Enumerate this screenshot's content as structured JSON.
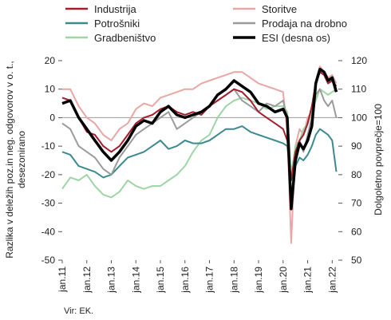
{
  "chart_data": {
    "type": "line",
    "source": "Vir: EK.",
    "left_axis": {
      "label": "Razlika v deležih poz.in neg. odgovorov v o. t., desezonirano",
      "min": -50,
      "max": 20,
      "ticks": [
        "20",
        "10",
        "0",
        "-10",
        "-20",
        "-30",
        "-40",
        "-50"
      ]
    },
    "right_axis": {
      "label": "Dolgoletno povprečje=100",
      "min": 50,
      "max": 120,
      "ticks": [
        "120",
        "110",
        "100",
        "90",
        "80",
        "70",
        "60",
        "50"
      ]
    },
    "x_axis": {
      "start": 2011.0,
      "end": 2022.25,
      "labels": [
        "jan.11",
        "jan.12",
        "jan.13",
        "jan.14",
        "jan.15",
        "jan.16",
        "jan.17",
        "jan.18",
        "jan.19",
        "jan.20",
        "jan.21",
        "jan.22"
      ],
      "label_years": [
        2011,
        2012,
        2013,
        2014,
        2015,
        2016,
        2017,
        2018,
        2019,
        2020,
        2021,
        2022
      ]
    },
    "legend": {
      "placement": "top",
      "entries": [
        "Industrija",
        "Storitve",
        "Potrošniki",
        "Prodaja na drobno",
        "Gradbeništvo",
        "ESI (desna os)"
      ]
    },
    "series": [
      {
        "name": "Storitve",
        "axis": "left",
        "color": "#e8a7a4",
        "width": 2,
        "x": [
          2011.0,
          2011.33,
          2011.67,
          2012.0,
          2012.33,
          2012.67,
          2013.0,
          2013.33,
          2013.67,
          2014.0,
          2014.33,
          2014.67,
          2015.0,
          2015.33,
          2015.67,
          2016.0,
          2016.33,
          2016.67,
          2017.0,
          2017.33,
          2017.67,
          2018.0,
          2018.33,
          2018.67,
          2019.0,
          2019.33,
          2019.67,
          2020.0,
          2020.17,
          2020.33,
          2020.5,
          2020.67,
          2020.83,
          2021.0,
          2021.17,
          2021.33,
          2021.5,
          2021.67,
          2021.83,
          2022.0,
          2022.17
        ],
        "y": [
          10,
          10,
          4,
          0,
          -2,
          -6,
          -8,
          -4,
          -2,
          3,
          5,
          4,
          7,
          8,
          9,
          10,
          10,
          12,
          13,
          14,
          15,
          16,
          16,
          14,
          12,
          11,
          10,
          9,
          -5,
          -44,
          -10,
          -4,
          -6,
          0,
          2,
          13,
          18,
          16,
          14,
          15,
          12
        ]
      },
      {
        "name": "Gradbeništvo",
        "axis": "left",
        "color": "#9fd5a6",
        "width": 2,
        "x": [
          2011.0,
          2011.33,
          2011.67,
          2012.0,
          2012.33,
          2012.67,
          2013.0,
          2013.33,
          2013.67,
          2014.0,
          2014.33,
          2014.67,
          2015.0,
          2015.33,
          2015.67,
          2016.0,
          2016.33,
          2016.67,
          2017.0,
          2017.33,
          2017.67,
          2018.0,
          2018.33,
          2018.67,
          2019.0,
          2019.33,
          2019.67,
          2020.0,
          2020.17,
          2020.33,
          2020.5,
          2020.67,
          2020.83,
          2021.0,
          2021.17,
          2021.33,
          2021.5,
          2021.67,
          2021.83,
          2022.0,
          2022.17
        ],
        "y": [
          -25,
          -21,
          -22,
          -20,
          -24,
          -27,
          -28,
          -26,
          -22,
          -24,
          -25,
          -24,
          -24,
          -22,
          -20,
          -17,
          -12,
          -8,
          -6,
          0,
          4,
          6,
          7,
          6,
          5,
          3,
          4,
          4,
          2,
          -20,
          -10,
          -8,
          -4,
          -2,
          2,
          6,
          10,
          9,
          8,
          9,
          10
        ]
      },
      {
        "name": "Potrošniki",
        "axis": "left",
        "color": "#3c8a8e",
        "width": 2,
        "x": [
          2011.0,
          2011.33,
          2011.67,
          2012.0,
          2012.33,
          2012.67,
          2013.0,
          2013.33,
          2013.67,
          2014.0,
          2014.33,
          2014.67,
          2015.0,
          2015.33,
          2015.67,
          2016.0,
          2016.33,
          2016.67,
          2017.0,
          2017.33,
          2017.67,
          2018.0,
          2018.33,
          2018.67,
          2019.0,
          2019.33,
          2019.67,
          2020.0,
          2020.17,
          2020.33,
          2020.5,
          2020.67,
          2020.83,
          2021.0,
          2021.17,
          2021.33,
          2021.5,
          2021.67,
          2021.83,
          2022.0,
          2022.17
        ],
        "y": [
          -12,
          -13,
          -17,
          -18,
          -19,
          -21,
          -20,
          -17,
          -14,
          -13,
          -12,
          -10,
          -8,
          -11,
          -10,
          -8,
          -9,
          -9,
          -8,
          -6,
          -4,
          -4,
          -3,
          -5,
          -6,
          -7,
          -8,
          -9,
          -10,
          -22,
          -17,
          -14,
          -15,
          -13,
          -10,
          -6,
          -4,
          -5,
          -6,
          -8,
          -19
        ]
      },
      {
        "name": "Prodaja na drobno",
        "axis": "left",
        "color": "#9b9b9b",
        "width": 2,
        "x": [
          2011.0,
          2011.33,
          2011.67,
          2012.0,
          2012.33,
          2012.67,
          2013.0,
          2013.33,
          2013.67,
          2014.0,
          2014.33,
          2014.67,
          2015.0,
          2015.33,
          2015.67,
          2016.0,
          2016.33,
          2016.67,
          2017.0,
          2017.33,
          2017.67,
          2018.0,
          2018.33,
          2018.67,
          2019.0,
          2019.33,
          2019.67,
          2020.0,
          2020.17,
          2020.33,
          2020.5,
          2020.67,
          2020.83,
          2021.0,
          2021.17,
          2021.33,
          2021.5,
          2021.67,
          2021.83,
          2022.0,
          2022.17
        ],
        "y": [
          -2,
          -4,
          -10,
          -12,
          -14,
          -18,
          -20,
          -14,
          -10,
          -6,
          -4,
          -2,
          0,
          2,
          -4,
          -2,
          0,
          2,
          4,
          6,
          8,
          10,
          6,
          4,
          2,
          5,
          4,
          6,
          0,
          -30,
          -16,
          -8,
          -12,
          -6,
          0,
          8,
          10,
          6,
          4,
          6,
          0
        ]
      },
      {
        "name": "Industrija",
        "axis": "left",
        "color": "#a51d2d",
        "width": 2,
        "x": [
          2011.0,
          2011.33,
          2011.67,
          2012.0,
          2012.33,
          2012.67,
          2013.0,
          2013.33,
          2013.67,
          2014.0,
          2014.33,
          2014.67,
          2015.0,
          2015.33,
          2015.67,
          2016.0,
          2016.33,
          2016.67,
          2017.0,
          2017.33,
          2017.67,
          2018.0,
          2018.33,
          2018.67,
          2019.0,
          2019.33,
          2019.67,
          2020.0,
          2020.17,
          2020.33,
          2020.5,
          2020.67,
          2020.83,
          2021.0,
          2021.17,
          2021.33,
          2021.5,
          2021.67,
          2021.83,
          2022.0,
          2022.17
        ],
        "y": [
          7,
          6,
          0,
          -5,
          -6,
          -10,
          -12,
          -10,
          -6,
          -2,
          0,
          1,
          3,
          4,
          2,
          1,
          2,
          1,
          4,
          6,
          8,
          10,
          9,
          6,
          2,
          0,
          -2,
          -4,
          -8,
          -22,
          -12,
          -8,
          -6,
          -2,
          4,
          12,
          16,
          15,
          12,
          13,
          11
        ]
      },
      {
        "name": "ESI (desna os)",
        "axis": "right",
        "color": "#000000",
        "width": 3.5,
        "x": [
          2011.0,
          2011.33,
          2011.67,
          2012.0,
          2012.33,
          2012.67,
          2013.0,
          2013.33,
          2013.67,
          2014.0,
          2014.33,
          2014.67,
          2015.0,
          2015.33,
          2015.67,
          2016.0,
          2016.33,
          2016.67,
          2017.0,
          2017.33,
          2017.67,
          2018.0,
          2018.33,
          2018.67,
          2019.0,
          2019.33,
          2019.67,
          2020.0,
          2020.17,
          2020.33,
          2020.5,
          2020.67,
          2020.83,
          2021.0,
          2021.17,
          2021.33,
          2021.5,
          2021.67,
          2021.83,
          2022.0,
          2022.17
        ],
        "y": [
          105,
          106,
          100,
          96,
          92,
          88,
          85,
          88,
          92,
          97,
          99,
          98,
          102,
          104,
          101,
          100,
          101,
          102,
          104,
          108,
          110,
          113,
          111,
          109,
          105,
          104,
          102,
          103,
          100,
          68,
          85,
          91,
          89,
          92,
          97,
          112,
          117,
          116,
          113,
          114,
          109
        ]
      }
    ]
  }
}
